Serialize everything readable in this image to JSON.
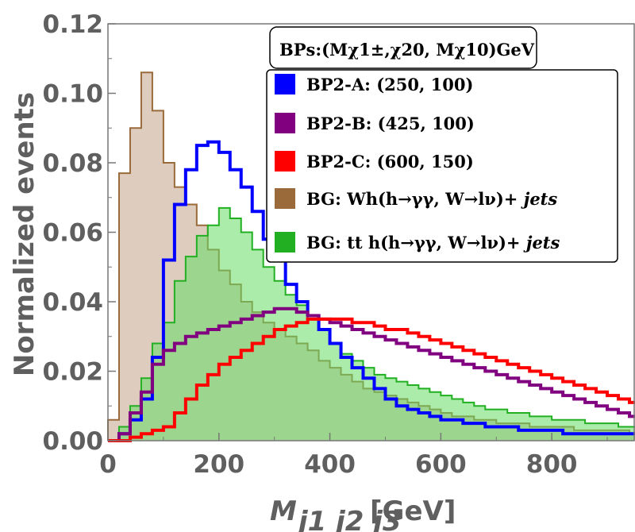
{
  "chart_data": {
    "type": "histogram",
    "xlabel_main": "M",
    "xlabel_sub": "j1 j2 j3",
    "xlabel_unit": "[GeV]",
    "ylabel": "Normalized events",
    "xlim": [
      0,
      950
    ],
    "ylim": [
      0,
      0.12
    ],
    "x_ticks": [
      "0",
      "200",
      "400",
      "600",
      "800"
    ],
    "x_tick_values": [
      0,
      200,
      400,
      600,
      800
    ],
    "y_ticks": [
      "0.00",
      "0.02",
      "0.04",
      "0.06",
      "0.08",
      "0.10",
      "0.12"
    ],
    "y_tick_values": [
      0,
      0.02,
      0.04,
      0.06,
      0.08,
      0.1,
      0.12
    ],
    "bin_width": 20,
    "bin_start": 0,
    "legend_title": "BPs:(Mχ1±,χ20, Mχ10)GeV",
    "series": [
      {
        "name": "BG: Wh(h→γγ, W→lν)+jets",
        "label_main": "BG:  Wh(h→γγ, W→lν)+ ",
        "label_italic": "jets",
        "color": "#9a6a3a",
        "fill": "#d8c4b4",
        "filled": true,
        "values": [
          0.006,
          0.077,
          0.09,
          0.106,
          0.095,
          0.08,
          0.073,
          0.068,
          0.062,
          0.055,
          0.049,
          0.045,
          0.04,
          0.037,
          0.034,
          0.032,
          0.03,
          0.028,
          0.026,
          0.023,
          0.021,
          0.019,
          0.017,
          0.015,
          0.014,
          0.013,
          0.012,
          0.011,
          0.01,
          0.009,
          0.008,
          0.007,
          0.007,
          0.006,
          0.006,
          0.005,
          0.005,
          0.005,
          0.004,
          0.004,
          0.004,
          0.004,
          0.003,
          0.003,
          0.003,
          0.003,
          0.003,
          0.002
        ]
      },
      {
        "name": "BG: tt̄h(h→γγ, W→lν)+jets",
        "label_main": "BG:  tt h(h→γγ, W→lν)+ ",
        "label_italic": "jets",
        "color": "#22b022",
        "fill": "#66dd66",
        "filled": true,
        "values": [
          0,
          0.004,
          0.01,
          0.018,
          0.028,
          0.034,
          0.046,
          0.053,
          0.059,
          0.062,
          0.067,
          0.064,
          0.06,
          0.055,
          0.05,
          0.046,
          0.042,
          0.039,
          0.035,
          0.032,
          0.028,
          0.025,
          0.023,
          0.021,
          0.019,
          0.018,
          0.017,
          0.016,
          0.015,
          0.014,
          0.013,
          0.012,
          0.011,
          0.01,
          0.009,
          0.009,
          0.008,
          0.008,
          0.007,
          0.007,
          0.006,
          0.006,
          0.006,
          0.005,
          0.005,
          0.005,
          0.004,
          0.004
        ]
      },
      {
        "name": "BP2-A: (250, 100)",
        "label_main": "BP2-A: (250, 100)",
        "color": "#0000ff",
        "filled": false,
        "values": [
          0,
          0.002,
          0.006,
          0.012,
          0.024,
          0.052,
          0.068,
          0.078,
          0.085,
          0.086,
          0.083,
          0.078,
          0.073,
          0.066,
          0.058,
          0.052,
          0.045,
          0.04,
          0.036,
          0.032,
          0.028,
          0.024,
          0.021,
          0.018,
          0.015,
          0.012,
          0.01,
          0.009,
          0.008,
          0.007,
          0.006,
          0.006,
          0.005,
          0.005,
          0.004,
          0.004,
          0.004,
          0.003,
          0.003,
          0.003,
          0.003,
          0.002,
          0.002,
          0.002,
          0.002,
          0.002,
          0.002,
          0.002
        ]
      },
      {
        "name": "BP2-B: (425, 100)",
        "label_main": "BP2-B: (425, 100)",
        "color": "#800080",
        "filled": false,
        "values": [
          0,
          0.002,
          0.008,
          0.014,
          0.022,
          0.026,
          0.028,
          0.03,
          0.031,
          0.032,
          0.033,
          0.034,
          0.035,
          0.036,
          0.037,
          0.038,
          0.038,
          0.037,
          0.036,
          0.035,
          0.034,
          0.033,
          0.032,
          0.031,
          0.03,
          0.029,
          0.028,
          0.027,
          0.026,
          0.025,
          0.024,
          0.023,
          0.022,
          0.021,
          0.02,
          0.019,
          0.018,
          0.017,
          0.016,
          0.015,
          0.014,
          0.013,
          0.012,
          0.011,
          0.01,
          0.009,
          0.008,
          0.007
        ]
      },
      {
        "name": "BP2-C: (600, 150)",
        "label_main": "BP2-C: (600, 150)",
        "color": "#ff0000",
        "filled": false,
        "values": [
          0,
          0,
          0.001,
          0.002,
          0.003,
          0.004,
          0.008,
          0.012,
          0.016,
          0.019,
          0.022,
          0.024,
          0.026,
          0.028,
          0.03,
          0.032,
          0.033,
          0.034,
          0.035,
          0.035,
          0.035,
          0.035,
          0.034,
          0.034,
          0.033,
          0.032,
          0.032,
          0.031,
          0.03,
          0.029,
          0.028,
          0.027,
          0.026,
          0.025,
          0.024,
          0.023,
          0.022,
          0.021,
          0.02,
          0.019,
          0.018,
          0.017,
          0.016,
          0.015,
          0.014,
          0.013,
          0.012,
          0.011
        ]
      }
    ],
    "legend_order": [
      2,
      3,
      4,
      0,
      1
    ]
  }
}
